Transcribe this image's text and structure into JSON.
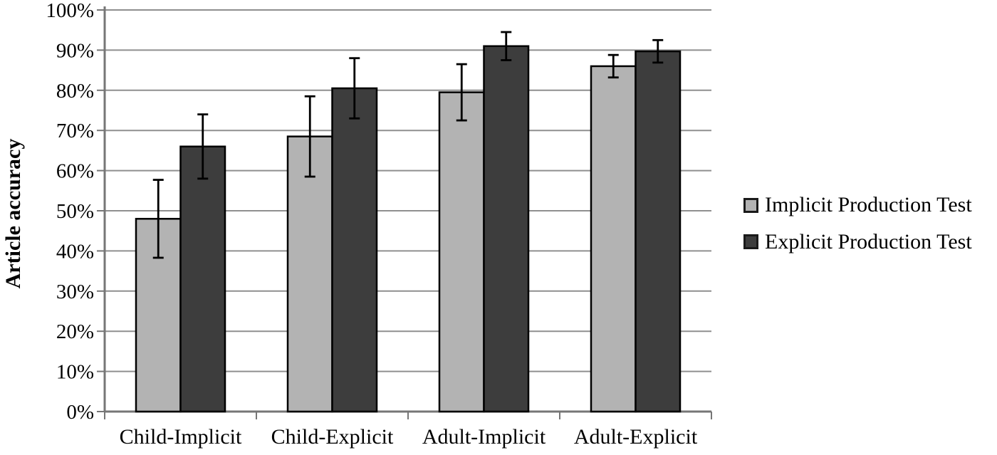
{
  "chart_data": {
    "type": "bar",
    "title": "",
    "ylabel": "Article accuracy",
    "xlabel": "",
    "categories": [
      "Child-Implicit",
      "Child-Explicit",
      "Adult-Implicit",
      "Adult-Explicit"
    ],
    "series": [
      {
        "name": "Implicit Production Test",
        "color": "#b3b3b3",
        "values": [
          48,
          68.5,
          79.5,
          86
        ],
        "errors": [
          9.7,
          10,
          7,
          2.8
        ]
      },
      {
        "name": "Explicit Production Test",
        "color": "#3d3d3d",
        "values": [
          66,
          80.5,
          91,
          89.7
        ],
        "errors": [
          8,
          7.5,
          3.5,
          2.8
        ]
      }
    ],
    "ylim": [
      0,
      100
    ],
    "y_tick_step": 10,
    "y_tick_labels": [
      "0%",
      "10%",
      "20%",
      "30%",
      "40%",
      "50%",
      "60%",
      "70%",
      "80%",
      "90%",
      "100%"
    ],
    "grid": "horizontal",
    "legend_position": "right",
    "error_bars": true
  },
  "style": {
    "background": "#ffffff",
    "axis_color": "#767676",
    "grid_color": "#8f8f8f",
    "bar_border_color": "#000000",
    "error_bar_color": "#000000",
    "text_color": "#000000",
    "legend_swatch_border": "#1a1a1a"
  }
}
